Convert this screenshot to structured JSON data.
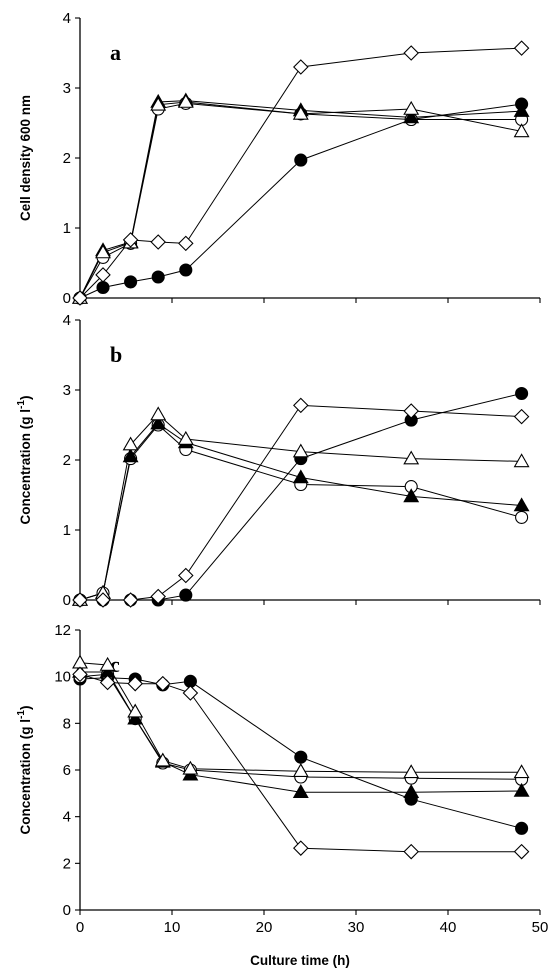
{
  "figure": {
    "xlabel": "Culture time (h)",
    "x_ticks": [
      0,
      10,
      20,
      30,
      40,
      50
    ],
    "xlim": [
      0,
      50
    ]
  },
  "chart_data": [
    {
      "type": "line",
      "panel_label": "a",
      "ylabel": "Cell density 600 nm",
      "ylabel_sup": "",
      "ylim": [
        0,
        4
      ],
      "y_ticks": [
        0,
        1,
        2,
        3,
        4
      ],
      "grid": false,
      "series": [
        {
          "marker": "filled-circle",
          "x": [
            0,
            2.5,
            5.5,
            8.5,
            11.5,
            24,
            36,
            48
          ],
          "y": [
            0,
            0.15,
            0.23,
            0.3,
            0.4,
            1.97,
            2.55,
            2.77
          ]
        },
        {
          "marker": "open-circle",
          "x": [
            0,
            2.5,
            5.5,
            8.5,
            11.5,
            24,
            36,
            48
          ],
          "y": [
            0,
            0.58,
            0.78,
            2.7,
            2.78,
            2.63,
            2.55,
            2.55
          ]
        },
        {
          "marker": "filled-triangle",
          "x": [
            0,
            2.5,
            5.5,
            8.5,
            11.5,
            24,
            36,
            48
          ],
          "y": [
            0,
            0.68,
            0.8,
            2.8,
            2.82,
            2.68,
            2.58,
            2.67
          ]
        },
        {
          "marker": "open-triangle",
          "x": [
            0,
            2.5,
            5.5,
            8.5,
            11.5,
            24,
            36,
            48
          ],
          "y": [
            0,
            0.65,
            0.79,
            2.76,
            2.8,
            2.63,
            2.7,
            2.38
          ]
        },
        {
          "marker": "open-diamond",
          "x": [
            0,
            2.5,
            5.5,
            8.5,
            11.5,
            24,
            36,
            48
          ],
          "y": [
            0,
            0.33,
            0.83,
            0.8,
            0.78,
            3.3,
            3.5,
            3.57
          ]
        }
      ]
    },
    {
      "type": "line",
      "panel_label": "b",
      "ylabel": "Concentration (g l",
      "ylabel_sup": "-1",
      "ylabel_end": ")",
      "ylim": [
        0,
        4
      ],
      "y_ticks": [
        0,
        1,
        2,
        3,
        4
      ],
      "grid": false,
      "series": [
        {
          "marker": "filled-circle",
          "x": [
            0,
            2.5,
            5.5,
            8.5,
            11.5,
            24,
            36,
            48
          ],
          "y": [
            0,
            0,
            0,
            0,
            0.07,
            2.02,
            2.57,
            2.95
          ]
        },
        {
          "marker": "open-circle",
          "x": [
            0,
            2.5,
            5.5,
            8.5,
            11.5,
            24,
            36,
            48
          ],
          "y": [
            0,
            0.1,
            2.02,
            2.5,
            2.15,
            1.65,
            1.62,
            1.18
          ]
        },
        {
          "marker": "filled-triangle",
          "x": [
            0,
            2.5,
            5.5,
            8.5,
            11.5,
            24,
            36,
            48
          ],
          "y": [
            0,
            0.1,
            2.05,
            2.52,
            2.25,
            1.75,
            1.48,
            1.35
          ]
        },
        {
          "marker": "open-triangle",
          "x": [
            0,
            2.5,
            5.5,
            8.5,
            11.5,
            24,
            36,
            48
          ],
          "y": [
            0,
            0.1,
            2.22,
            2.65,
            2.3,
            2.12,
            2.02,
            1.98
          ]
        },
        {
          "marker": "open-diamond",
          "x": [
            0,
            2.5,
            5.5,
            8.5,
            11.5,
            24,
            36,
            48
          ],
          "y": [
            0,
            0,
            0,
            0.05,
            0.35,
            2.78,
            2.7,
            2.62
          ]
        }
      ]
    },
    {
      "type": "line",
      "panel_label": "c",
      "ylabel": "Concentration (g l",
      "ylabel_sup": "-1",
      "ylabel_end": ")",
      "ylim": [
        0,
        12
      ],
      "y_ticks": [
        0,
        2,
        4,
        6,
        8,
        10,
        12
      ],
      "grid": false,
      "series": [
        {
          "marker": "filled-circle",
          "x": [
            0,
            3,
            6,
            9,
            12,
            24,
            36,
            48
          ],
          "y": [
            9.9,
            9.95,
            9.9,
            9.65,
            9.8,
            6.55,
            4.75,
            3.5
          ]
        },
        {
          "marker": "open-circle",
          "x": [
            0,
            3,
            6,
            9,
            12,
            24,
            36,
            48
          ],
          "y": [
            10,
            10.1,
            8.2,
            6.3,
            6.0,
            5.7,
            5.65,
            5.6
          ]
        },
        {
          "marker": "filled-triangle",
          "x": [
            0,
            3,
            6,
            9,
            12,
            24,
            36,
            48
          ],
          "y": [
            10.2,
            10.2,
            8.2,
            6.35,
            5.8,
            5.05,
            5.05,
            5.1
          ]
        },
        {
          "marker": "open-triangle",
          "x": [
            0,
            3,
            6,
            9,
            12,
            24,
            36,
            48
          ],
          "y": [
            10.6,
            10.5,
            8.5,
            6.4,
            6.05,
            5.95,
            5.9,
            5.9
          ]
        },
        {
          "marker": "open-diamond",
          "x": [
            0,
            3,
            6,
            9,
            12,
            24,
            36,
            48
          ],
          "y": [
            10.1,
            9.75,
            9.7,
            9.7,
            9.3,
            2.65,
            2.5,
            2.5
          ]
        }
      ]
    }
  ]
}
